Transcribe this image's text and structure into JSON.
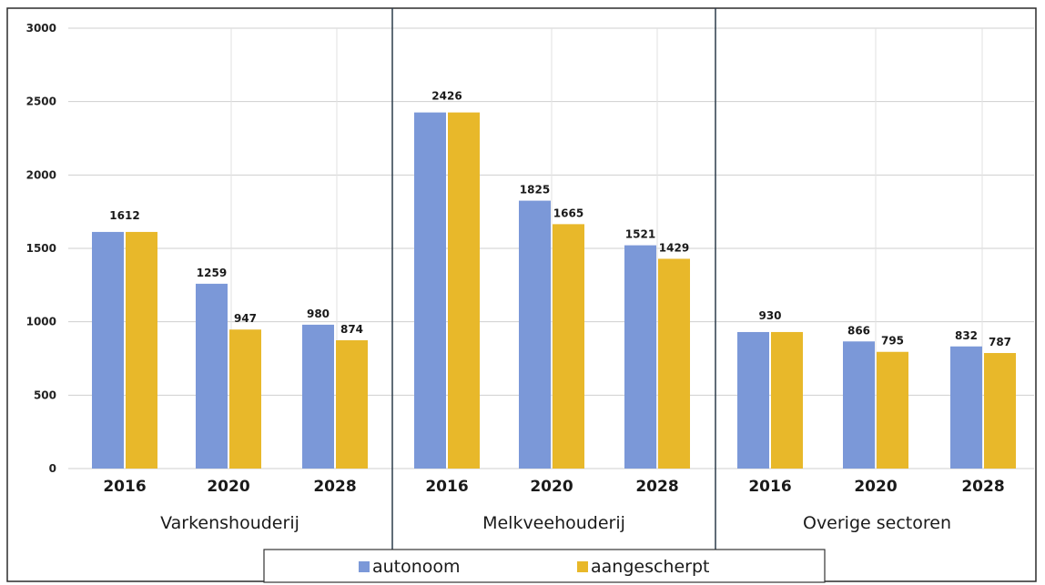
{
  "chart_data": {
    "type": "bar",
    "title": "",
    "xlabel": "",
    "ylabel": "",
    "ylim": [
      0,
      3000
    ],
    "yticks": [
      0,
      500,
      1000,
      1500,
      2000,
      2500,
      3000
    ],
    "grid": true,
    "legend_position": "bottom",
    "groups": [
      {
        "label": "Varkenshouderij",
        "categories": [
          "2016",
          "2020",
          "2028"
        ],
        "series": [
          {
            "name": "autonoom",
            "values": [
              1612,
              1259,
              980
            ]
          },
          {
            "name": "aangescherpt",
            "values": [
              1612,
              947,
              874
            ]
          }
        ],
        "data_labels": [
          [
            "1612",
            ""
          ],
          [
            "1259",
            "947"
          ],
          [
            "980",
            "874"
          ]
        ]
      },
      {
        "label": "Melkveehouderij",
        "categories": [
          "2016",
          "2020",
          "2028"
        ],
        "series": [
          {
            "name": "autonoom",
            "values": [
              2426,
              1825,
              1521
            ]
          },
          {
            "name": "aangescherpt",
            "values": [
              2426,
              1665,
              1429
            ]
          }
        ],
        "data_labels": [
          [
            "2426",
            ""
          ],
          [
            "1825",
            "1665"
          ],
          [
            "1521",
            "1429"
          ]
        ]
      },
      {
        "label": "Overige sectoren",
        "categories": [
          "2016",
          "2020",
          "2028"
        ],
        "series": [
          {
            "name": "autonoom",
            "values": [
              930,
              866,
              832
            ]
          },
          {
            "name": "aangescherpt",
            "values": [
              930,
              795,
              787
            ]
          }
        ],
        "data_labels": [
          [
            "930",
            ""
          ],
          [
            "866",
            "795"
          ],
          [
            "832",
            "787"
          ]
        ]
      }
    ],
    "legend": [
      {
        "name": "autonoom",
        "color": "#7b98d8"
      },
      {
        "name": "aangescherpt",
        "color": "#e8b82a"
      }
    ],
    "colors": {
      "autonoom": "#7b98d8",
      "aangescherpt": "#e8b82a"
    }
  }
}
